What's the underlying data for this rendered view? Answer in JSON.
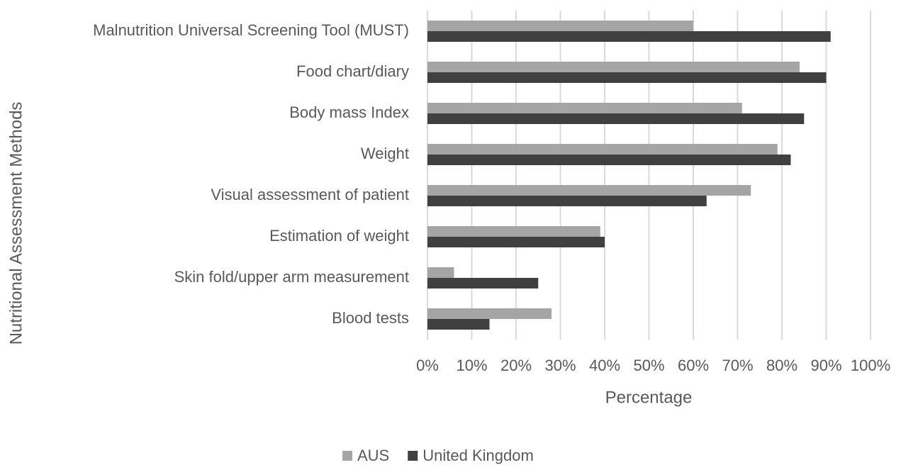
{
  "chart_data": {
    "type": "bar",
    "orientation": "horizontal",
    "x_axis_label": "Percentage",
    "y_axis_label": "Nutritional Assessment Methods",
    "categories": [
      "Malnutrition Universal Screening Tool (MUST)",
      "Food chart/diary",
      "Body mass Index",
      "Weight",
      "Visual assessment of patient",
      "Estimation of weight",
      "Skin fold/upper arm measurement",
      "Blood tests"
    ],
    "series": [
      {
        "name": "AUS",
        "color": "#a5a5a5",
        "values": [
          60,
          84,
          71,
          79,
          73,
          39,
          6,
          28
        ]
      },
      {
        "name": "United Kingdom",
        "color": "#404040",
        "values": [
          91,
          90,
          85,
          82,
          63,
          40,
          25,
          14
        ]
      }
    ],
    "xlim": [
      0,
      100
    ],
    "xticks": [
      {
        "value": 0,
        "label": "0%"
      },
      {
        "value": 10,
        "label": "10%"
      },
      {
        "value": 20,
        "label": "20%"
      },
      {
        "value": 30,
        "label": "30%"
      },
      {
        "value": 40,
        "label": "40%"
      },
      {
        "value": 50,
        "label": "50%"
      },
      {
        "value": 60,
        "label": "60%"
      },
      {
        "value": 70,
        "label": "70%"
      },
      {
        "value": 80,
        "label": "80%"
      },
      {
        "value": 90,
        "label": "90%"
      },
      {
        "value": 100,
        "label": "100%"
      }
    ],
    "grid": true,
    "legend": "bottom"
  }
}
